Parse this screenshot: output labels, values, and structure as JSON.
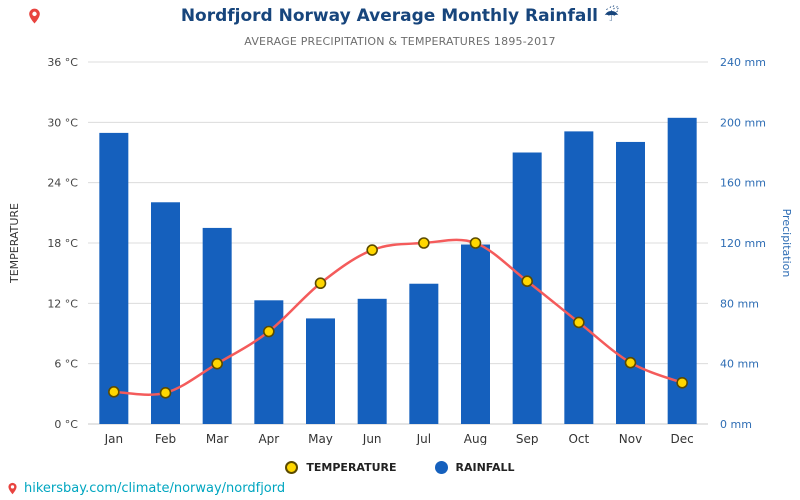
{
  "header": {
    "title": "Nordfjord Norway Average Monthly Rainfall",
    "title_icon": "☔",
    "subtitle": "AVERAGE PRECIPITATION & TEMPERATURES 1895-2017"
  },
  "chart_data": {
    "type": "bar+line combo",
    "categories": [
      "Jan",
      "Feb",
      "Mar",
      "Apr",
      "May",
      "Jun",
      "Jul",
      "Aug",
      "Sep",
      "Oct",
      "Nov",
      "Dec"
    ],
    "series": [
      {
        "name": "RAINFALL",
        "type": "bar",
        "axis": "right",
        "unit": "mm",
        "color": "#1560BD",
        "values": [
          193,
          147,
          130,
          82,
          70,
          83,
          93,
          119,
          180,
          194,
          187,
          203
        ]
      },
      {
        "name": "TEMPERATURE",
        "type": "line",
        "axis": "left",
        "unit": "°C",
        "color": "#F45B5B",
        "marker_fill": "#FFD700",
        "marker_stroke": "#5B4A00",
        "values": [
          3.2,
          3.1,
          6,
          9.2,
          14,
          17.3,
          18,
          18,
          14.2,
          10.1,
          6.1,
          4.1
        ]
      }
    ],
    "left_axis": {
      "title": "TEMPERATURE",
      "min": 0,
      "max": 36,
      "tick_step": 6,
      "ticks": [
        "0 °C",
        "6 °C",
        "12 °C",
        "18 °C",
        "24 °C",
        "30 °C",
        "36 °C"
      ]
    },
    "right_axis": {
      "title": "Precipitation",
      "min": 0,
      "max": 240,
      "tick_step": 40,
      "ticks": [
        "0 mm",
        "40 mm",
        "80 mm",
        "120 mm",
        "160 mm",
        "200 mm",
        "240 mm"
      ]
    },
    "grid": true,
    "legend_position": "bottom"
  },
  "legend": {
    "temperature_label": "TEMPERATURE",
    "rainfall_label": "RAINFALL"
  },
  "footer": {
    "link_text": "hikersbay.com/climate/norway/nordfjord"
  },
  "colors": {
    "bar": "#1560BD",
    "line": "#F45B5B",
    "marker_fill": "#FFD700",
    "marker_stroke": "#5B4A00",
    "title": "#17457C",
    "subtitle": "#6E6E6E",
    "left_axis_text": "#444444",
    "right_axis_text": "#2E6DB4",
    "month_label": "#333333",
    "grid": "#DCDCDC",
    "axis_line": "#C9C9C9",
    "link": "#00A6C0",
    "pin": "#E8433F"
  }
}
